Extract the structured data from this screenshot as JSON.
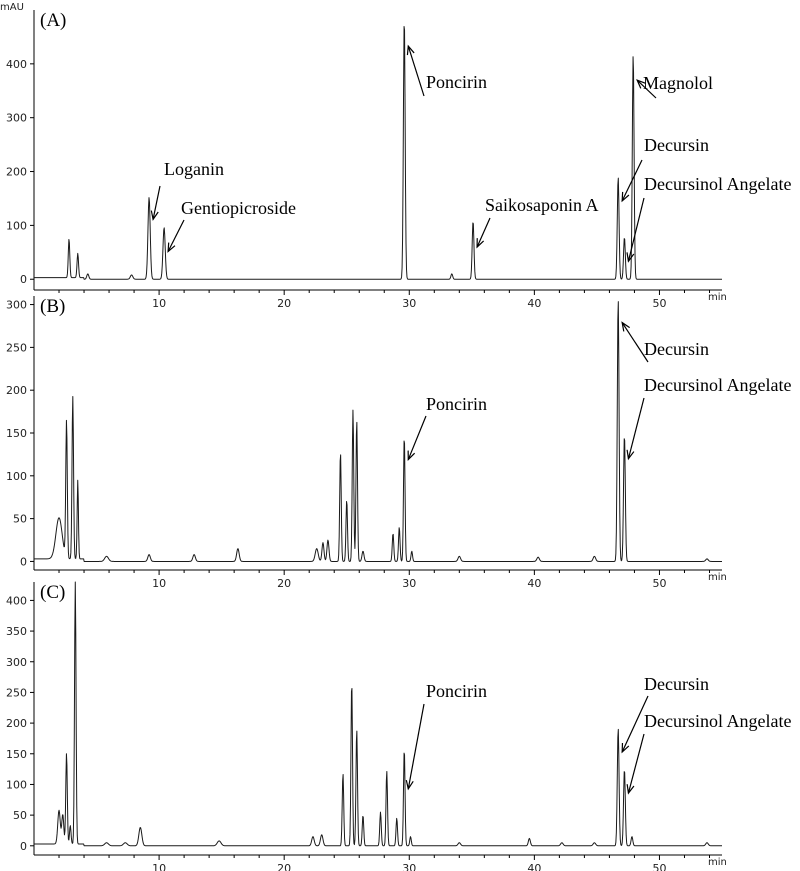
{
  "figure": {
    "y_unit_label": "mAU",
    "x_unit_label": "min"
  },
  "chart_data": [
    {
      "type": "line",
      "panel": "(A)",
      "xlim": [
        0,
        55
      ],
      "ylim": [
        -20,
        500
      ],
      "xticks": [
        10,
        20,
        30,
        40,
        50
      ],
      "yticks": [
        0,
        100,
        200,
        300,
        400
      ],
      "peaks": [
        {
          "x": 2.8,
          "y": 72,
          "w": 0.06
        },
        {
          "x": 3.5,
          "y": 45,
          "w": 0.06
        },
        {
          "x": 4.3,
          "y": 10,
          "w": 0.08
        },
        {
          "x": 7.8,
          "y": 8,
          "w": 0.1
        },
        {
          "x": 9.2,
          "y": 152,
          "w": 0.09
        },
        {
          "x": 10.4,
          "y": 96,
          "w": 0.09
        },
        {
          "x": 29.6,
          "y": 485,
          "w": 0.07
        },
        {
          "x": 33.4,
          "y": 10,
          "w": 0.07
        },
        {
          "x": 35.1,
          "y": 108,
          "w": 0.07
        },
        {
          "x": 46.7,
          "y": 190,
          "w": 0.07
        },
        {
          "x": 47.2,
          "y": 78,
          "w": 0.07
        },
        {
          "x": 47.9,
          "y": 418,
          "w": 0.07
        }
      ],
      "annotations": [
        {
          "label": "Loganin",
          "peak_x": 9.2,
          "peak_y": 152
        },
        {
          "label": "Gentiopicroside",
          "peak_x": 10.4,
          "peak_y": 96
        },
        {
          "label": "Poncirin",
          "peak_x": 29.6,
          "peak_y": 485
        },
        {
          "label": "Saikosaponin A",
          "peak_x": 35.1,
          "peak_y": 108
        },
        {
          "label": "Magnolol",
          "peak_x": 47.9,
          "peak_y": 418
        },
        {
          "label": "Decursin",
          "peak_x": 46.7,
          "peak_y": 190
        },
        {
          "label": "Decursinol Angelate",
          "peak_x": 47.2,
          "peak_y": 78
        }
      ]
    },
    {
      "type": "line",
      "panel": "(B)",
      "xlim": [
        0,
        55
      ],
      "ylim": [
        -10,
        310
      ],
      "xticks": [
        10,
        20,
        30,
        40,
        50
      ],
      "yticks": [
        0,
        50,
        100,
        150,
        200,
        250,
        300
      ],
      "peaks": [
        {
          "x": 2.0,
          "y": 48,
          "w": 0.25
        },
        {
          "x": 2.6,
          "y": 160,
          "w": 0.06
        },
        {
          "x": 3.1,
          "y": 190,
          "w": 0.06
        },
        {
          "x": 3.5,
          "y": 92,
          "w": 0.05
        },
        {
          "x": 5.8,
          "y": 6,
          "w": 0.15
        },
        {
          "x": 9.2,
          "y": 8,
          "w": 0.1
        },
        {
          "x": 12.8,
          "y": 8,
          "w": 0.1
        },
        {
          "x": 16.3,
          "y": 15,
          "w": 0.1
        },
        {
          "x": 22.6,
          "y": 15,
          "w": 0.12
        },
        {
          "x": 23.1,
          "y": 22,
          "w": 0.08
        },
        {
          "x": 23.5,
          "y": 25,
          "w": 0.08
        },
        {
          "x": 24.5,
          "y": 128,
          "w": 0.06
        },
        {
          "x": 25.0,
          "y": 72,
          "w": 0.06
        },
        {
          "x": 25.5,
          "y": 177,
          "w": 0.06
        },
        {
          "x": 25.8,
          "y": 165,
          "w": 0.06
        },
        {
          "x": 26.3,
          "y": 12,
          "w": 0.08
        },
        {
          "x": 28.7,
          "y": 33,
          "w": 0.06
        },
        {
          "x": 29.2,
          "y": 40,
          "w": 0.06
        },
        {
          "x": 29.6,
          "y": 147,
          "w": 0.06
        },
        {
          "x": 30.2,
          "y": 12,
          "w": 0.06
        },
        {
          "x": 34.0,
          "y": 6,
          "w": 0.1
        },
        {
          "x": 40.3,
          "y": 5,
          "w": 0.1
        },
        {
          "x": 44.8,
          "y": 6,
          "w": 0.1
        },
        {
          "x": 46.7,
          "y": 307,
          "w": 0.07
        },
        {
          "x": 47.2,
          "y": 148,
          "w": 0.07
        },
        {
          "x": 53.8,
          "y": 3,
          "w": 0.1
        }
      ],
      "annotations": [
        {
          "label": "Poncirin",
          "peak_x": 29.6,
          "peak_y": 147
        },
        {
          "label": "Decursin",
          "peak_x": 46.7,
          "peak_y": 307
        },
        {
          "label": "Decursinol Angelate",
          "peak_x": 47.2,
          "peak_y": 148
        }
      ]
    },
    {
      "type": "line",
      "panel": "(C)",
      "xlim": [
        0,
        55
      ],
      "ylim": [
        -15,
        430
      ],
      "xticks": [
        10,
        20,
        30,
        40,
        50
      ],
      "yticks": [
        0,
        50,
        100,
        150,
        200,
        250,
        300,
        350,
        400
      ],
      "peaks": [
        {
          "x": 2.0,
          "y": 55,
          "w": 0.1
        },
        {
          "x": 2.3,
          "y": 48,
          "w": 0.08
        },
        {
          "x": 2.6,
          "y": 148,
          "w": 0.06
        },
        {
          "x": 2.9,
          "y": 30,
          "w": 0.06
        },
        {
          "x": 3.3,
          "y": 427,
          "w": 0.06
        },
        {
          "x": 5.8,
          "y": 5,
          "w": 0.15
        },
        {
          "x": 7.3,
          "y": 5,
          "w": 0.15
        },
        {
          "x": 8.5,
          "y": 30,
          "w": 0.12
        },
        {
          "x": 14.8,
          "y": 8,
          "w": 0.15
        },
        {
          "x": 22.3,
          "y": 15,
          "w": 0.1
        },
        {
          "x": 23.0,
          "y": 18,
          "w": 0.1
        },
        {
          "x": 24.7,
          "y": 118,
          "w": 0.06
        },
        {
          "x": 25.4,
          "y": 268,
          "w": 0.06
        },
        {
          "x": 25.8,
          "y": 190,
          "w": 0.06
        },
        {
          "x": 26.3,
          "y": 50,
          "w": 0.06
        },
        {
          "x": 27.7,
          "y": 55,
          "w": 0.06
        },
        {
          "x": 28.2,
          "y": 122,
          "w": 0.06
        },
        {
          "x": 29.0,
          "y": 45,
          "w": 0.06
        },
        {
          "x": 29.6,
          "y": 158,
          "w": 0.06
        },
        {
          "x": 30.1,
          "y": 15,
          "w": 0.06
        },
        {
          "x": 34.0,
          "y": 5,
          "w": 0.1
        },
        {
          "x": 39.6,
          "y": 12,
          "w": 0.08
        },
        {
          "x": 42.2,
          "y": 5,
          "w": 0.1
        },
        {
          "x": 44.8,
          "y": 5,
          "w": 0.1
        },
        {
          "x": 46.7,
          "y": 192,
          "w": 0.07
        },
        {
          "x": 47.2,
          "y": 125,
          "w": 0.07
        },
        {
          "x": 47.8,
          "y": 15,
          "w": 0.07
        },
        {
          "x": 53.8,
          "y": 5,
          "w": 0.1
        }
      ],
      "annotations": [
        {
          "label": "Poncirin",
          "peak_x": 29.6,
          "peak_y": 158
        },
        {
          "label": "Decursin",
          "peak_x": 46.7,
          "peak_y": 192
        },
        {
          "label": "Decursinol Angelate",
          "peak_x": 47.2,
          "peak_y": 125
        }
      ]
    }
  ]
}
